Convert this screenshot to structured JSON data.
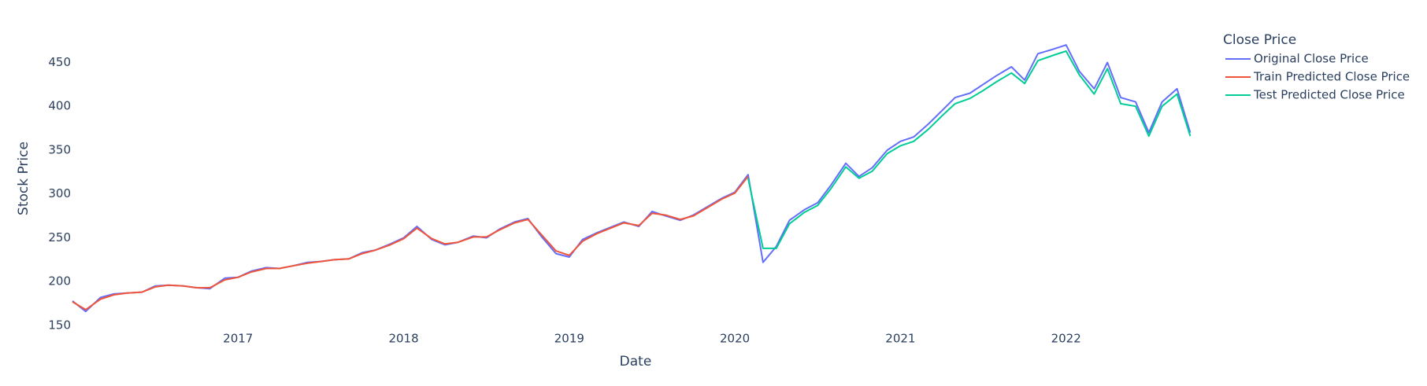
{
  "chart_data": {
    "type": "line",
    "x_label": "Date",
    "y_label": "Stock Price",
    "legend_title": "Close Price",
    "x": [
      2016.0,
      2016.08,
      2016.17,
      2016.25,
      2016.33,
      2016.42,
      2016.5,
      2016.58,
      2016.67,
      2016.75,
      2016.83,
      2016.92,
      2017.0,
      2017.08,
      2017.17,
      2017.25,
      2017.33,
      2017.42,
      2017.5,
      2017.58,
      2017.67,
      2017.75,
      2017.83,
      2017.92,
      2018.0,
      2018.08,
      2018.17,
      2018.25,
      2018.33,
      2018.42,
      2018.5,
      2018.58,
      2018.67,
      2018.75,
      2018.83,
      2018.92,
      2019.0,
      2019.08,
      2019.17,
      2019.25,
      2019.33,
      2019.42,
      2019.5,
      2019.58,
      2019.67,
      2019.75,
      2019.83,
      2019.92,
      2020.0,
      2020.08,
      2020.17,
      2020.25,
      2020.33,
      2020.42,
      2020.5,
      2020.58,
      2020.67,
      2020.75,
      2020.83,
      2020.92,
      2021.0,
      2021.08,
      2021.17,
      2021.25,
      2021.33,
      2021.42,
      2021.5,
      2021.58,
      2021.67,
      2021.75,
      2021.83,
      2021.92,
      2022.0,
      2022.08,
      2022.17,
      2022.25,
      2022.33,
      2022.42,
      2022.5,
      2022.58,
      2022.67,
      2022.75
    ],
    "series": [
      {
        "name": "Original Close Price",
        "color": "#636efa",
        "values": [
          178,
          166,
          182,
          186,
          187,
          188,
          195,
          196,
          195,
          193,
          192,
          204,
          205,
          212,
          216,
          215,
          218,
          222,
          223,
          225,
          226,
          233,
          236,
          243,
          250,
          263,
          248,
          242,
          245,
          252,
          250,
          260,
          268,
          272,
          252,
          232,
          228,
          248,
          256,
          262,
          268,
          263,
          280,
          275,
          270,
          276,
          285,
          295,
          302,
          322,
          222,
          240,
          270,
          282,
          290,
          310,
          335,
          320,
          330,
          350,
          360,
          365,
          380,
          395,
          410,
          415,
          425,
          435,
          445,
          430,
          460,
          465,
          470,
          440,
          420,
          450,
          410,
          405,
          370,
          405,
          420,
          370
        ]
      },
      {
        "name": "Train Predicted Close Price",
        "color": "#ef553b",
        "values": [
          177,
          168,
          180,
          185,
          187,
          188,
          194,
          196,
          195,
          193,
          193,
          202,
          205,
          211,
          215,
          215,
          218,
          221,
          223,
          225,
          226,
          232,
          236,
          242,
          249,
          261,
          249,
          243,
          245,
          251,
          251,
          259,
          267,
          271,
          254,
          235,
          230,
          246,
          255,
          261,
          267,
          264,
          278,
          276,
          271,
          275,
          284,
          294,
          301,
          320,
          null,
          null,
          null,
          null,
          null,
          null,
          null,
          null,
          null,
          null,
          null,
          null,
          null,
          null,
          null,
          null,
          null,
          null,
          null,
          null,
          null,
          null,
          null,
          null,
          null,
          null,
          null,
          null,
          null,
          null,
          null,
          null
        ]
      },
      {
        "name": "Test Predicted Close Price",
        "color": "#00cc96",
        "values": [
          null,
          null,
          null,
          null,
          null,
          null,
          null,
          null,
          null,
          null,
          null,
          null,
          null,
          null,
          null,
          null,
          null,
          null,
          null,
          null,
          null,
          null,
          null,
          null,
          null,
          null,
          null,
          null,
          null,
          null,
          null,
          null,
          null,
          null,
          null,
          null,
          null,
          null,
          null,
          null,
          null,
          null,
          null,
          null,
          null,
          null,
          null,
          null,
          null,
          318,
          238,
          238,
          266,
          279,
          287,
          306,
          331,
          318,
          326,
          346,
          355,
          360,
          374,
          389,
          403,
          409,
          418,
          428,
          438,
          426,
          452,
          458,
          463,
          436,
          414,
          443,
          403,
          400,
          366,
          400,
          414,
          366
        ]
      }
    ],
    "xlim": [
      2016.0,
      2022.81
    ],
    "xticks": [
      2017,
      2018,
      2019,
      2020,
      2021,
      2022
    ],
    "ylim": [
      150,
      480
    ],
    "yticks": [
      150,
      200,
      250,
      300,
      350,
      400,
      450
    ],
    "grid": false
  }
}
